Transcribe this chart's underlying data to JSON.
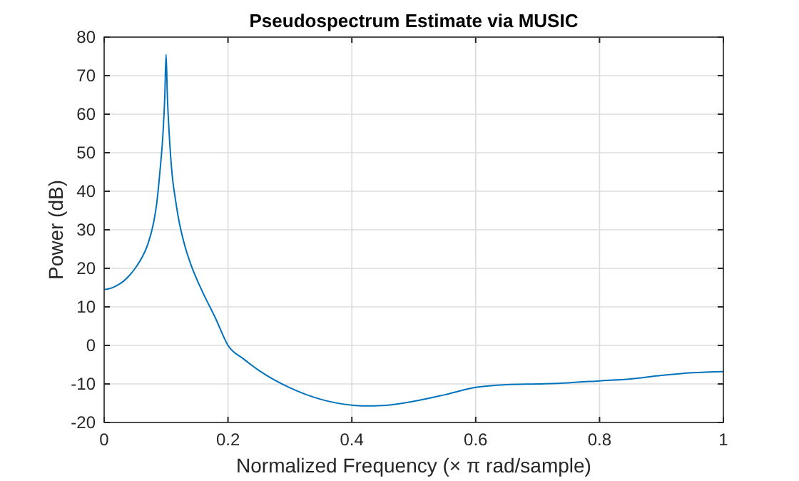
{
  "chart_data": {
    "type": "line",
    "title": "Pseudospectrum Estimate via MUSIC",
    "xlabel": "Normalized Frequency (× π rad/sample)",
    "ylabel": "Power (dB)",
    "x": [
      0,
      0.01,
      0.02,
      0.03,
      0.04,
      0.05,
      0.06,
      0.07,
      0.08,
      0.085,
      0.09,
      0.095,
      0.098,
      0.1,
      0.102,
      0.105,
      0.11,
      0.115,
      0.12,
      0.13,
      0.14,
      0.15,
      0.16,
      0.18,
      0.2,
      0.225,
      0.25,
      0.3,
      0.35,
      0.4,
      0.42,
      0.45,
      0.5,
      0.55,
      0.6,
      0.65,
      0.7,
      0.75,
      0.8,
      0.85,
      0.9,
      0.95,
      1
    ],
    "series": [
      {
        "color": "#0072bd",
        "values": [
          14.5,
          14.8,
          15.5,
          16.5,
          18,
          20,
          22.5,
          26,
          32,
          37,
          45,
          55,
          65,
          75.5,
          65,
          55,
          44,
          38,
          33,
          26,
          21,
          17,
          13.5,
          7,
          0,
          -3.5,
          -6.5,
          -11,
          -14,
          -15.5,
          -15.7,
          -15.6,
          -14.5,
          -12.8,
          -10.9,
          -10.2,
          -10,
          -9.7,
          -9.2,
          -8.7,
          -7.8,
          -7.1,
          -6.8
        ]
      }
    ],
    "xlim": [
      0,
      1
    ],
    "xticks": [
      0,
      0.2,
      0.4,
      0.6,
      0.8,
      1
    ],
    "ylim": [
      -20,
      80
    ],
    "yticks": [
      -20,
      -10,
      0,
      10,
      20,
      30,
      40,
      50,
      60,
      70,
      80
    ],
    "grid": true,
    "marker": "none",
    "line_style": "solid"
  }
}
